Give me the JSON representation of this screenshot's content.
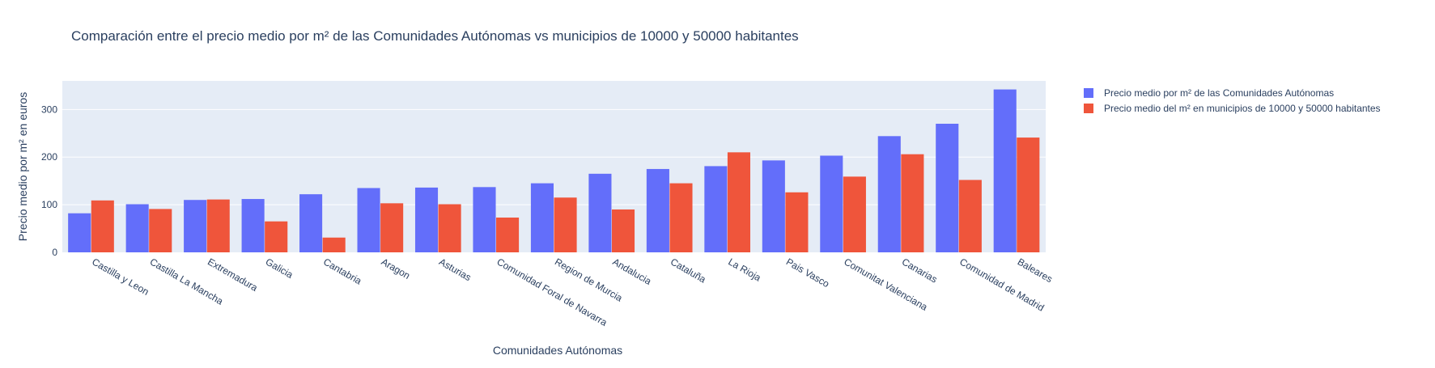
{
  "colors": {
    "plot_bg": "#E5ECF6",
    "grid": "#ffffff",
    "text": "#2a3f5f",
    "series_1": "#636EFA",
    "series_2": "#EF553B"
  },
  "chart_data": {
    "type": "bar",
    "barmode": "group",
    "title": "Comparación entre el precio medio por m² de las Comunidades Autónomas vs municipios de 10000 y 50000 habitantes",
    "xlabel": "Comunidades Autónomas",
    "ylabel": "Precio medio por m² en euros",
    "ylim": [
      0,
      360
    ],
    "yticks": [
      0,
      100,
      200,
      300
    ],
    "grid": true,
    "legend_position": "top-right, outside plot area",
    "categories": [
      "Castilla y Leon",
      "Castilla La Mancha",
      "Extremadura",
      "Galicia",
      "Cantabria",
      "Aragon",
      "Asturias",
      "Comunidad Foral de Navarra",
      "Region de Murcia",
      "Andalucia",
      "Cataluña",
      "La Rioja",
      "Pais Vasco",
      "Comunitat Valenciana",
      "Canarias",
      "Comunidad de Madrid",
      "Baleares"
    ],
    "series": [
      {
        "name": "Precio medio por m² de las Comunidades Autónomas",
        "color": "#636EFA",
        "values": [
          82,
          101,
          110,
          112,
          122,
          135,
          136,
          137,
          145,
          165,
          175,
          181,
          193,
          203,
          244,
          270,
          342
        ]
      },
      {
        "name": "Precio medio del m² en municipios de 10000 y 50000 habitantes",
        "color": "#EF553B",
        "values": [
          109,
          91,
          111,
          65,
          31,
          103,
          101,
          73,
          115,
          90,
          145,
          210,
          126,
          159,
          206,
          152,
          241
        ]
      }
    ]
  }
}
